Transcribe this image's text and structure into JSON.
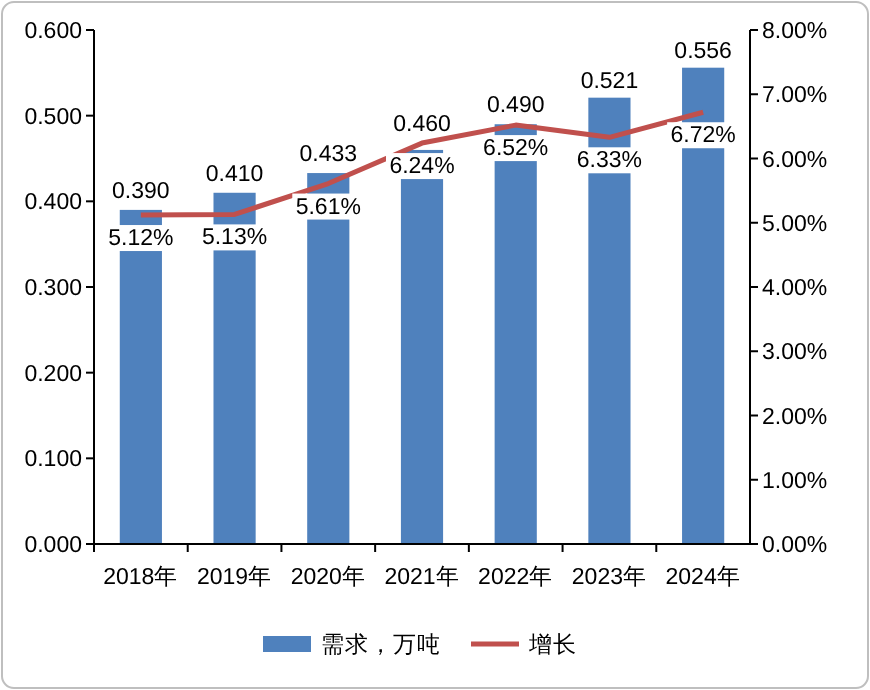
{
  "chart_data": {
    "type": "bar",
    "categories": [
      "2018年",
      "2019年",
      "2020年",
      "2021年",
      "2022年",
      "2023年",
      "2024年"
    ],
    "series": [
      {
        "name": "需求，万吨",
        "color": "#4f81bd",
        "values": [
          0.39,
          0.41,
          0.433,
          0.46,
          0.49,
          0.521,
          0.556
        ],
        "value_labels": [
          "0.390",
          "0.410",
          "0.433",
          "0.460",
          "0.490",
          "0.521",
          "0.556"
        ]
      },
      {
        "name": "增长",
        "type": "line",
        "axis": "y2",
        "color": "#c0504d",
        "values": [
          5.12,
          5.13,
          5.61,
          6.24,
          6.52,
          6.33,
          6.72
        ],
        "value_labels": [
          "5.12%",
          "5.13%",
          "5.61%",
          "6.24%",
          "6.52%",
          "6.33%",
          "6.72%"
        ]
      }
    ],
    "ylim": [
      0,
      0.6
    ],
    "yticks": [
      {
        "value": 0,
        "label": "0.000"
      },
      {
        "value": 0.1,
        "label": "0.100"
      },
      {
        "value": 0.2,
        "label": "0.200"
      },
      {
        "value": 0.3,
        "label": "0.300"
      },
      {
        "value": 0.4,
        "label": "0.400"
      },
      {
        "value": 0.5,
        "label": "0.500"
      },
      {
        "value": 0.6,
        "label": "0.600"
      }
    ],
    "y2lim": [
      0,
      8
    ],
    "y2ticks": [
      {
        "value": 0,
        "label": "0.00%"
      },
      {
        "value": 1,
        "label": "1.00%"
      },
      {
        "value": 2,
        "label": "2.00%"
      },
      {
        "value": 3,
        "label": "3.00%"
      },
      {
        "value": 4,
        "label": "4.00%"
      },
      {
        "value": 5,
        "label": "5.00%"
      },
      {
        "value": 6,
        "label": "6.00%"
      },
      {
        "value": 7,
        "label": "7.00%"
      },
      {
        "value": 8,
        "label": "8.00%"
      }
    ],
    "legend": "bottom",
    "marker": "none"
  }
}
